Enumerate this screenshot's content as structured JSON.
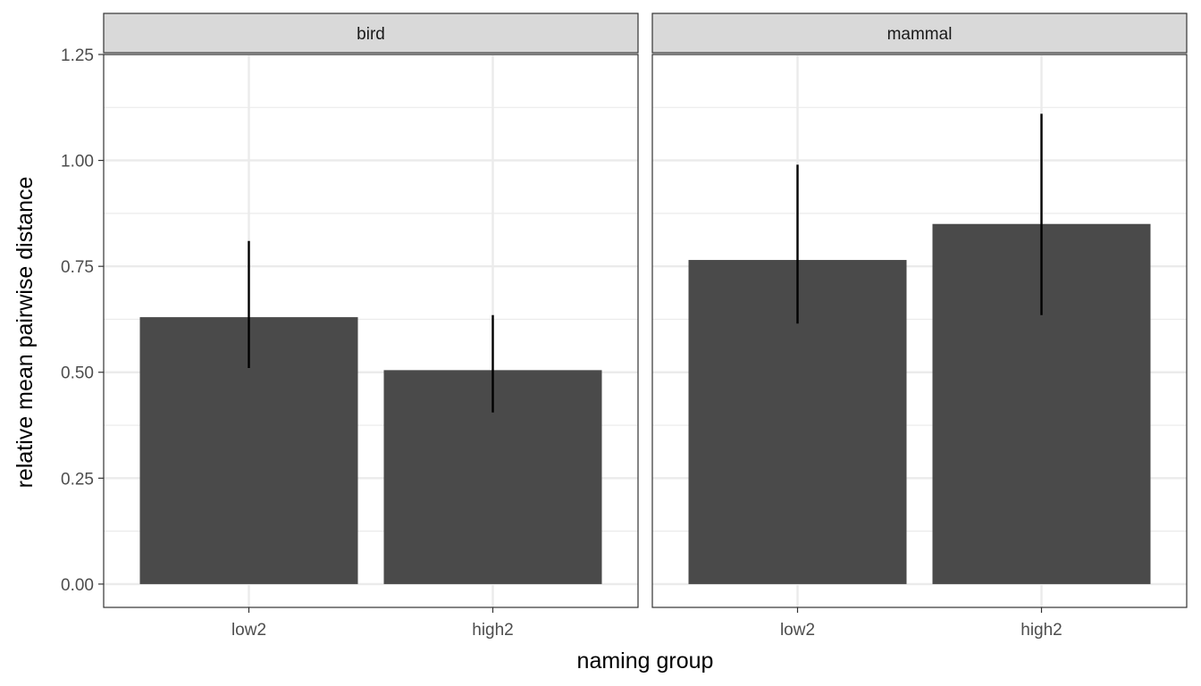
{
  "chart_data": {
    "type": "bar",
    "xlabel": "naming group",
    "ylabel": "relative mean pairwise distance",
    "ylim": [
      -0.055,
      1.25
    ],
    "yticks": [
      0.0,
      0.25,
      0.5,
      0.75,
      1.0,
      1.25
    ],
    "ytick_labels": [
      "0.00",
      "0.25",
      "0.50",
      "0.75",
      "1.00",
      "1.25"
    ],
    "grid": true,
    "legend": "none",
    "colors": {
      "bar": "#4a4a4a",
      "error_bar": "#000000",
      "strip_fill": "#d9d9d9",
      "grid": "#ebebeb",
      "panel_border": "#333333"
    },
    "categories": [
      "low2",
      "high2"
    ],
    "facets": [
      {
        "label": "bird",
        "bars": [
          {
            "category": "low2",
            "value": 0.63,
            "err_low": 0.51,
            "err_high": 0.81
          },
          {
            "category": "high2",
            "value": 0.505,
            "err_low": 0.405,
            "err_high": 0.635
          }
        ]
      },
      {
        "label": "mammal",
        "bars": [
          {
            "category": "low2",
            "value": 0.765,
            "err_low": 0.615,
            "err_high": 0.99
          },
          {
            "category": "high2",
            "value": 0.85,
            "err_low": 0.635,
            "err_high": 1.11
          }
        ]
      }
    ]
  }
}
